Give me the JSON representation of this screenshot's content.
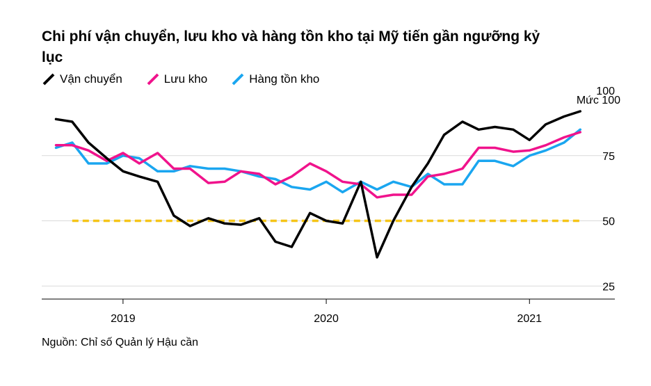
{
  "title": "Chi phí vận chuyển, lưu kho và hàng tồn kho tại Mỹ tiến gần ngưỡng kỷ lục",
  "source": "Nguồn: Chỉ số Quản lý Hậu cần",
  "legend": [
    {
      "name": "Vận chuyển",
      "color": "#000000"
    },
    {
      "name": "Lưu kho",
      "color": "#f0138c"
    },
    {
      "name": "Hàng tồn kho",
      "color": "#1aa6f0"
    }
  ],
  "chart_data": {
    "type": "line",
    "title": "Chi phí vận chuyển, lưu kho và hàng tồn kho tại Mỹ tiến gần ngưỡng kỷ lục",
    "y_unit_label": "Mức 100",
    "ylim": [
      20,
      100
    ],
    "yticks": [
      25,
      50,
      75,
      100
    ],
    "x_tick_labels": [
      "2019",
      "2020",
      "2021"
    ],
    "x_tick_positions": [
      2019.0,
      2020.0,
      2021.0
    ],
    "xlim": [
      2018.6,
      2021.42
    ],
    "x": [
      2018.67,
      2018.75,
      2018.83,
      2018.92,
      2019.0,
      2019.08,
      2019.17,
      2019.25,
      2019.33,
      2019.42,
      2019.5,
      2019.58,
      2019.67,
      2019.75,
      2019.83,
      2019.92,
      2020.0,
      2020.08,
      2020.17,
      2020.25,
      2020.33,
      2020.42,
      2020.5,
      2020.58,
      2020.67,
      2020.75,
      2020.83,
      2020.92,
      2021.0,
      2021.08,
      2021.17,
      2021.25
    ],
    "series": [
      {
        "name": "Vận chuyển",
        "color": "#000000",
        "values": [
          89,
          88,
          80,
          74,
          69,
          67,
          65,
          52,
          48,
          51,
          49,
          48.5,
          51,
          42,
          40,
          53,
          50,
          49,
          65,
          36,
          50,
          63,
          72,
          83,
          88,
          85,
          86,
          85,
          81,
          87,
          90,
          92
        ]
      },
      {
        "name": "Lưu kho",
        "color": "#f0138c",
        "values": [
          79,
          79,
          77,
          73,
          76,
          72,
          76,
          70,
          70,
          64.5,
          65,
          69,
          68,
          64,
          67,
          72,
          69,
          65,
          64,
          59,
          60,
          60,
          67,
          68,
          70,
          78,
          78,
          76.5,
          77,
          79,
          82,
          84
        ]
      },
      {
        "name": "Hàng tồn kho",
        "color": "#1aa6f0",
        "values": [
          78,
          80,
          72,
          72,
          75,
          74,
          69,
          69,
          71,
          70,
          70,
          69,
          67,
          66,
          63,
          62,
          65,
          61,
          65,
          62,
          65,
          63,
          68,
          64,
          64,
          73,
          73,
          71,
          75,
          77,
          80,
          85
        ]
      }
    ],
    "threshold": {
      "value": 50,
      "x_start": 2018.75,
      "x_end": 2021.25,
      "color": "#f5c518",
      "style": "dashed"
    }
  }
}
